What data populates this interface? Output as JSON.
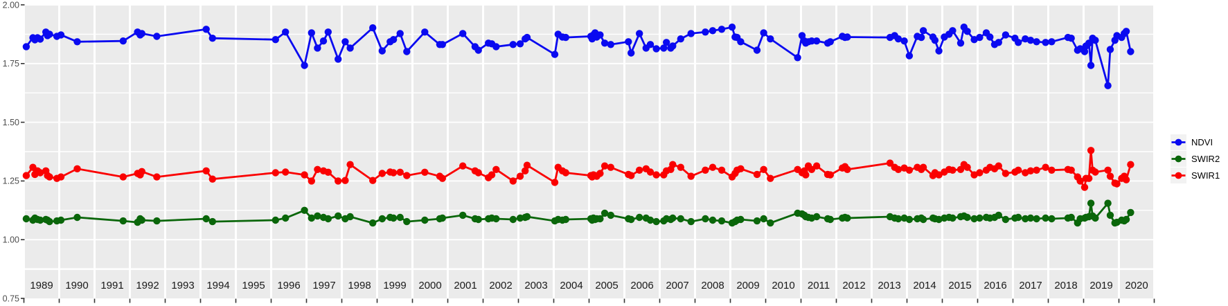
{
  "chart_data": {
    "type": "line",
    "title": "",
    "xlabel": "",
    "ylabel": "",
    "facet_by_year": true,
    "grid": true,
    "legend_position": "right",
    "background_color": "#ffffff",
    "panel_bg": "#ebebeb",
    "grid_color": "#ffffff",
    "axis_text_color": "#4d4d4d",
    "strip_text_color": "#1a1a1a",
    "tick_color": "#333333",
    "legend_key_bg": "#f2f2f2",
    "ylim": [
      0.75,
      2.0
    ],
    "y_ticks": [
      "2.00",
      "1.75",
      "1.50",
      "1.25",
      "1.00",
      "0.75"
    ],
    "y_tick_values": [
      2.0,
      1.75,
      1.5,
      1.25,
      1.0,
      0.75
    ],
    "y_minor_values": [
      1.875,
      1.75,
      1.625,
      1.5,
      1.375,
      1.25,
      1.125,
      1.0
    ],
    "x_tick_labels": [
      "1989",
      "1990",
      "1991",
      "1992",
      "1993",
      "1994",
      "1995",
      "1996",
      "1997",
      "1998",
      "1999",
      "2000",
      "2001",
      "2002",
      "2003",
      "2004",
      "2005",
      "2006",
      "2007",
      "2008",
      "2009",
      "2010",
      "2011",
      "2012",
      "2013",
      "2014",
      "2015",
      "2016",
      "2017",
      "2018",
      "2019",
      "2020"
    ],
    "legend": {
      "entries": [
        {
          "label": "NDVI",
          "color": "#0a0af0"
        },
        {
          "label": "SWIR2",
          "color": "#0a660a"
        },
        {
          "label": "SWIR1",
          "color": "#fa0000"
        }
      ]
    },
    "x": [
      1989.04,
      1989.24,
      1989.3,
      1989.38,
      1989.46,
      1989.63,
      1989.68,
      1989.74,
      1989.96,
      1990.02,
      1990.51,
      1991.83,
      1992.2,
      1992.28,
      1992.33,
      1992.78,
      1994.14,
      1994.33,
      1996.1,
      1996.4,
      1996.97,
      1997.12,
      1997.3,
      1997.48,
      1997.62,
      1997.92,
      1998.07,
      1998.22,
      1998.9,
      1999.12,
      1999.36,
      1999.46,
      1999.66,
      1999.86,
      2000.34,
      2000.79,
      2000.87,
      2001.42,
      2001.79,
      2001.89,
      2002.13,
      2002.23,
      2002.36,
      2002.87,
      2003.02,
      2003.17,
      2003.23,
      2004.0,
      2004.1,
      2004.23,
      2004.33,
      2005.02,
      2005.06,
      2005.1,
      2005.15,
      2005.2,
      2005.3,
      2005.44,
      2005.62,
      2006.09,
      2006.17,
      2006.42,
      2006.62,
      2006.75,
      2006.93,
      2007.09,
      2007.17,
      2007.3,
      2007.36,
      2007.6,
      2007.91,
      2008.28,
      2008.5,
      2008.77,
      2009.02,
      2009.11,
      2009.17,
      2009.28,
      2009.77,
      2009.97,
      2010.11,
      2010.93,
      2011.0,
      2011.07,
      2011.11,
      2011.19,
      2011.29,
      2011.44,
      2011.77,
      2011.85,
      2012.15,
      2012.23,
      2012.3,
      2013.52,
      2013.66,
      2013.77,
      2013.95,
      2014.04,
      2014.28,
      2014.4,
      2014.46,
      2014.75,
      2014.81,
      2014.93,
      2015.03,
      2015.17,
      2015.28,
      2015.52,
      2015.62,
      2015.72,
      2015.93,
      2016.03,
      2016.23,
      2016.34,
      2016.48,
      2016.6,
      2016.81,
      2017.03,
      2017.13,
      2017.34,
      2017.5,
      2017.68,
      2017.95,
      2018.07,
      2018.56,
      2018.66,
      2018.85,
      2018.93,
      2019.0,
      2019.04,
      2019.13,
      2019.19,
      2019.24,
      2019.32,
      2019.7,
      2019.77,
      2019.91,
      2019.97,
      2020.05,
      2020.13,
      2020.19,
      2020.32
    ],
    "series": [
      {
        "name": "NDVI",
        "color": "#0a0af0",
        "values": [
          1.822,
          1.86,
          1.851,
          1.86,
          1.854,
          1.884,
          1.869,
          1.875,
          1.866,
          1.872,
          1.843,
          1.846,
          1.884,
          1.872,
          1.878,
          1.866,
          1.896,
          1.858,
          1.852,
          1.884,
          1.742,
          1.881,
          1.816,
          1.846,
          1.884,
          1.769,
          1.843,
          1.816,
          1.902,
          1.804,
          1.843,
          1.852,
          1.878,
          1.801,
          1.884,
          1.831,
          1.831,
          1.878,
          1.822,
          1.807,
          1.837,
          1.834,
          1.822,
          1.831,
          1.834,
          1.855,
          1.861,
          1.789,
          1.875,
          1.863,
          1.861,
          1.866,
          1.855,
          1.872,
          1.881,
          1.863,
          1.872,
          1.837,
          1.831,
          1.843,
          1.795,
          1.878,
          1.816,
          1.831,
          1.813,
          1.816,
          1.84,
          1.816,
          1.825,
          1.855,
          1.878,
          1.884,
          1.89,
          1.896,
          1.905,
          1.863,
          1.861,
          1.843,
          1.807,
          1.881,
          1.855,
          1.775,
          1.869,
          1.846,
          1.837,
          1.843,
          1.846,
          1.846,
          1.837,
          1.843,
          1.866,
          1.861,
          1.863,
          1.861,
          1.869,
          1.855,
          1.846,
          1.783,
          1.866,
          1.861,
          1.89,
          1.863,
          1.849,
          1.804,
          1.863,
          1.875,
          1.89,
          1.837,
          1.905,
          1.887,
          1.852,
          1.861,
          1.881,
          1.863,
          1.831,
          1.84,
          1.872,
          1.858,
          1.84,
          1.855,
          1.849,
          1.843,
          1.84,
          1.843,
          1.861,
          1.858,
          1.807,
          1.813,
          1.801,
          1.825,
          1.837,
          1.742,
          1.858,
          1.849,
          1.656,
          1.81,
          1.849,
          1.869,
          1.861,
          1.878,
          1.887,
          1.801
        ]
      },
      {
        "name": "SWIR2",
        "color": "#0a660a",
        "values": [
          1.089,
          1.083,
          1.092,
          1.086,
          1.083,
          1.086,
          1.083,
          1.077,
          1.08,
          1.083,
          1.095,
          1.08,
          1.074,
          1.089,
          1.083,
          1.08,
          1.089,
          1.077,
          1.083,
          1.092,
          1.125,
          1.092,
          1.101,
          1.095,
          1.089,
          1.101,
          1.089,
          1.098,
          1.071,
          1.089,
          1.095,
          1.092,
          1.095,
          1.077,
          1.083,
          1.089,
          1.092,
          1.104,
          1.089,
          1.086,
          1.089,
          1.092,
          1.089,
          1.086,
          1.092,
          1.095,
          1.098,
          1.08,
          1.086,
          1.083,
          1.086,
          1.089,
          1.083,
          1.092,
          1.086,
          1.089,
          1.089,
          1.113,
          1.104,
          1.089,
          1.086,
          1.095,
          1.092,
          1.083,
          1.077,
          1.08,
          1.089,
          1.086,
          1.092,
          1.089,
          1.077,
          1.089,
          1.083,
          1.08,
          1.071,
          1.077,
          1.083,
          1.086,
          1.08,
          1.089,
          1.071,
          1.113,
          1.11,
          1.104,
          1.098,
          1.095,
          1.092,
          1.098,
          1.089,
          1.086,
          1.092,
          1.095,
          1.092,
          1.098,
          1.092,
          1.089,
          1.092,
          1.086,
          1.089,
          1.092,
          1.086,
          1.092,
          1.089,
          1.086,
          1.092,
          1.095,
          1.092,
          1.098,
          1.101,
          1.095,
          1.089,
          1.092,
          1.095,
          1.092,
          1.095,
          1.104,
          1.086,
          1.092,
          1.095,
          1.089,
          1.092,
          1.089,
          1.092,
          1.089,
          1.092,
          1.095,
          1.071,
          1.089,
          1.092,
          1.095,
          1.098,
          1.155,
          1.101,
          1.092,
          1.155,
          1.104,
          1.071,
          1.074,
          1.083,
          1.08,
          1.086,
          1.116
        ]
      },
      {
        "name": "SWIR1",
        "color": "#fa0000",
        "values": [
          1.273,
          1.308,
          1.278,
          1.293,
          1.285,
          1.293,
          1.273,
          1.267,
          1.261,
          1.267,
          1.302,
          1.267,
          1.282,
          1.276,
          1.29,
          1.267,
          1.293,
          1.258,
          1.285,
          1.288,
          1.276,
          1.25,
          1.299,
          1.293,
          1.287,
          1.25,
          1.252,
          1.32,
          1.252,
          1.282,
          1.288,
          1.285,
          1.287,
          1.273,
          1.287,
          1.27,
          1.261,
          1.314,
          1.293,
          1.285,
          1.264,
          1.276,
          1.299,
          1.25,
          1.27,
          1.293,
          1.317,
          1.244,
          1.308,
          1.293,
          1.285,
          1.273,
          1.267,
          1.276,
          1.273,
          1.27,
          1.282,
          1.314,
          1.308,
          1.278,
          1.273,
          1.296,
          1.302,
          1.288,
          1.276,
          1.276,
          1.293,
          1.299,
          1.32,
          1.308,
          1.27,
          1.296,
          1.308,
          1.296,
          1.267,
          1.282,
          1.296,
          1.302,
          1.278,
          1.299,
          1.261,
          1.299,
          1.285,
          1.293,
          1.276,
          1.314,
          1.299,
          1.314,
          1.278,
          1.276,
          1.305,
          1.311,
          1.299,
          1.326,
          1.308,
          1.299,
          1.305,
          1.296,
          1.308,
          1.299,
          1.308,
          1.273,
          1.285,
          1.276,
          1.288,
          1.299,
          1.296,
          1.299,
          1.32,
          1.308,
          1.276,
          1.285,
          1.296,
          1.308,
          1.302,
          1.314,
          1.282,
          1.288,
          1.296,
          1.285,
          1.293,
          1.296,
          1.308,
          1.296,
          1.299,
          1.296,
          1.267,
          1.25,
          1.223,
          1.261,
          1.261,
          1.38,
          1.296,
          1.288,
          1.296,
          1.27,
          1.241,
          1.238,
          1.261,
          1.27,
          1.255,
          1.32
        ]
      }
    ]
  }
}
